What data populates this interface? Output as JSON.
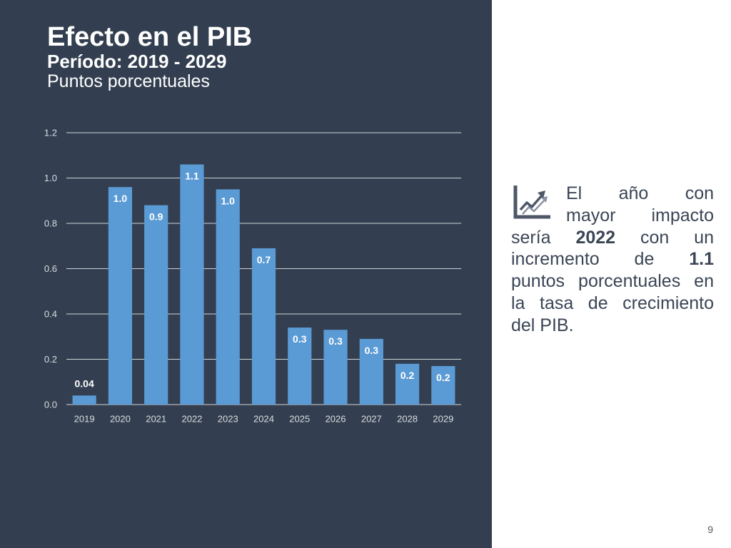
{
  "slide": {
    "page_number": "9"
  },
  "colors": {
    "panel_background": "#333F50",
    "summary_text": "#3B4555",
    "bar": "#5B9BD5"
  },
  "chart_data": {
    "type": "bar",
    "title": "Efecto en el PIB",
    "subtitle": "Período: 2019 - 2029",
    "units": "Puntos porcentuales",
    "categories": [
      "2019",
      "2020",
      "2021",
      "2022",
      "2023",
      "2024",
      "2025",
      "2026",
      "2027",
      "2028",
      "2029"
    ],
    "values": [
      0.04,
      0.96,
      0.88,
      1.06,
      0.95,
      0.69,
      0.34,
      0.33,
      0.29,
      0.18,
      0.17
    ],
    "data_labels": [
      "0.04",
      "1.0",
      "0.9",
      "1.1",
      "1.0",
      "0.7",
      "0.3",
      "0.3",
      "0.3",
      "0.2",
      "0.2"
    ],
    "y_ticks": [
      "0.0",
      "0.2",
      "0.4",
      "0.6",
      "0.8",
      "1.0",
      "1.2"
    ],
    "ylim": [
      0,
      1.2
    ],
    "grid": true,
    "legend": false
  },
  "summary": {
    "icon": "growth-chart-icon",
    "line_1": "El año con",
    "line_2": "mayor impacto",
    "line_3_before": "sería ",
    "year": "2022",
    "line_3_after": " con un",
    "line_4_before": "incremento de ",
    "impact": "1.1",
    "line_5": "puntos porcentuales en",
    "line_6": "la tasa de crecimiento",
    "line_7": "del PIB."
  }
}
